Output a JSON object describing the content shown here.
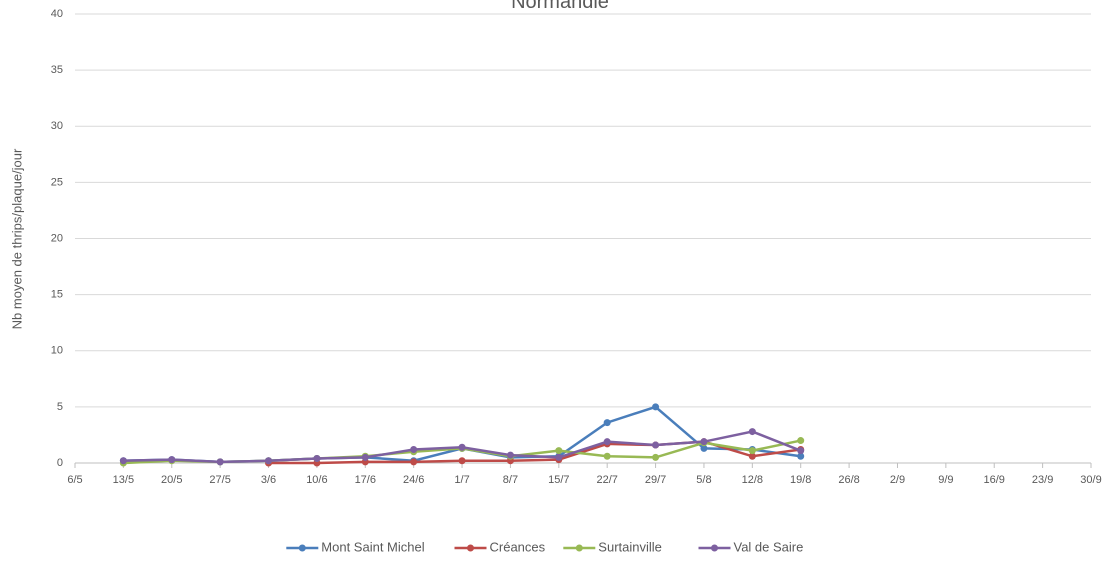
{
  "chart_data": {
    "type": "line",
    "title": "Normandie",
    "y_label": "Nb moyen de thrips/plaque/jour",
    "categories": [
      "6/5",
      "13/5",
      "20/5",
      "27/5",
      "3/6",
      "10/6",
      "17/6",
      "24/6",
      "1/7",
      "8/7",
      "15/7",
      "22/7",
      "29/7",
      "5/8",
      "12/8",
      "19/8",
      "26/8",
      "2/9",
      "9/9",
      "16/9",
      "23/9",
      "30/9"
    ],
    "series": [
      {
        "name": "Mont Saint Michel",
        "color": "#4a7ebb",
        "values": [
          null,
          0.2,
          0.3,
          0.1,
          0.2,
          0.4,
          0.5,
          0.2,
          1.3,
          0.5,
          0.6,
          3.6,
          5.0,
          1.3,
          1.2,
          0.6,
          null,
          null,
          null,
          null,
          null,
          null
        ]
      },
      {
        "name": "Créances",
        "color": "#be4b48",
        "values": [
          null,
          null,
          null,
          null,
          0.0,
          0.0,
          0.1,
          0.1,
          0.2,
          0.2,
          0.3,
          1.7,
          1.6,
          1.9,
          0.6,
          1.2,
          null,
          null,
          null,
          null,
          null,
          null
        ]
      },
      {
        "name": "Surtainville",
        "color": "#98b954",
        "values": [
          null,
          0.0,
          0.2,
          0.1,
          0.2,
          0.4,
          0.6,
          1.0,
          1.3,
          0.6,
          1.1,
          0.6,
          0.5,
          1.8,
          1.1,
          2.0,
          null,
          null,
          null,
          null,
          null,
          null
        ]
      },
      {
        "name": "Val de Saire",
        "color": "#7d60a0",
        "values": [
          null,
          0.2,
          0.3,
          0.1,
          0.2,
          0.4,
          0.5,
          1.2,
          1.4,
          0.7,
          0.5,
          1.9,
          1.6,
          1.9,
          2.8,
          1.1,
          null,
          null,
          null,
          null,
          null,
          null
        ]
      }
    ],
    "ylim": [
      0,
      40
    ],
    "yticks": [
      0,
      5,
      10,
      15,
      20,
      25,
      30,
      35,
      40
    ],
    "grid": true,
    "legend": "bottom"
  }
}
